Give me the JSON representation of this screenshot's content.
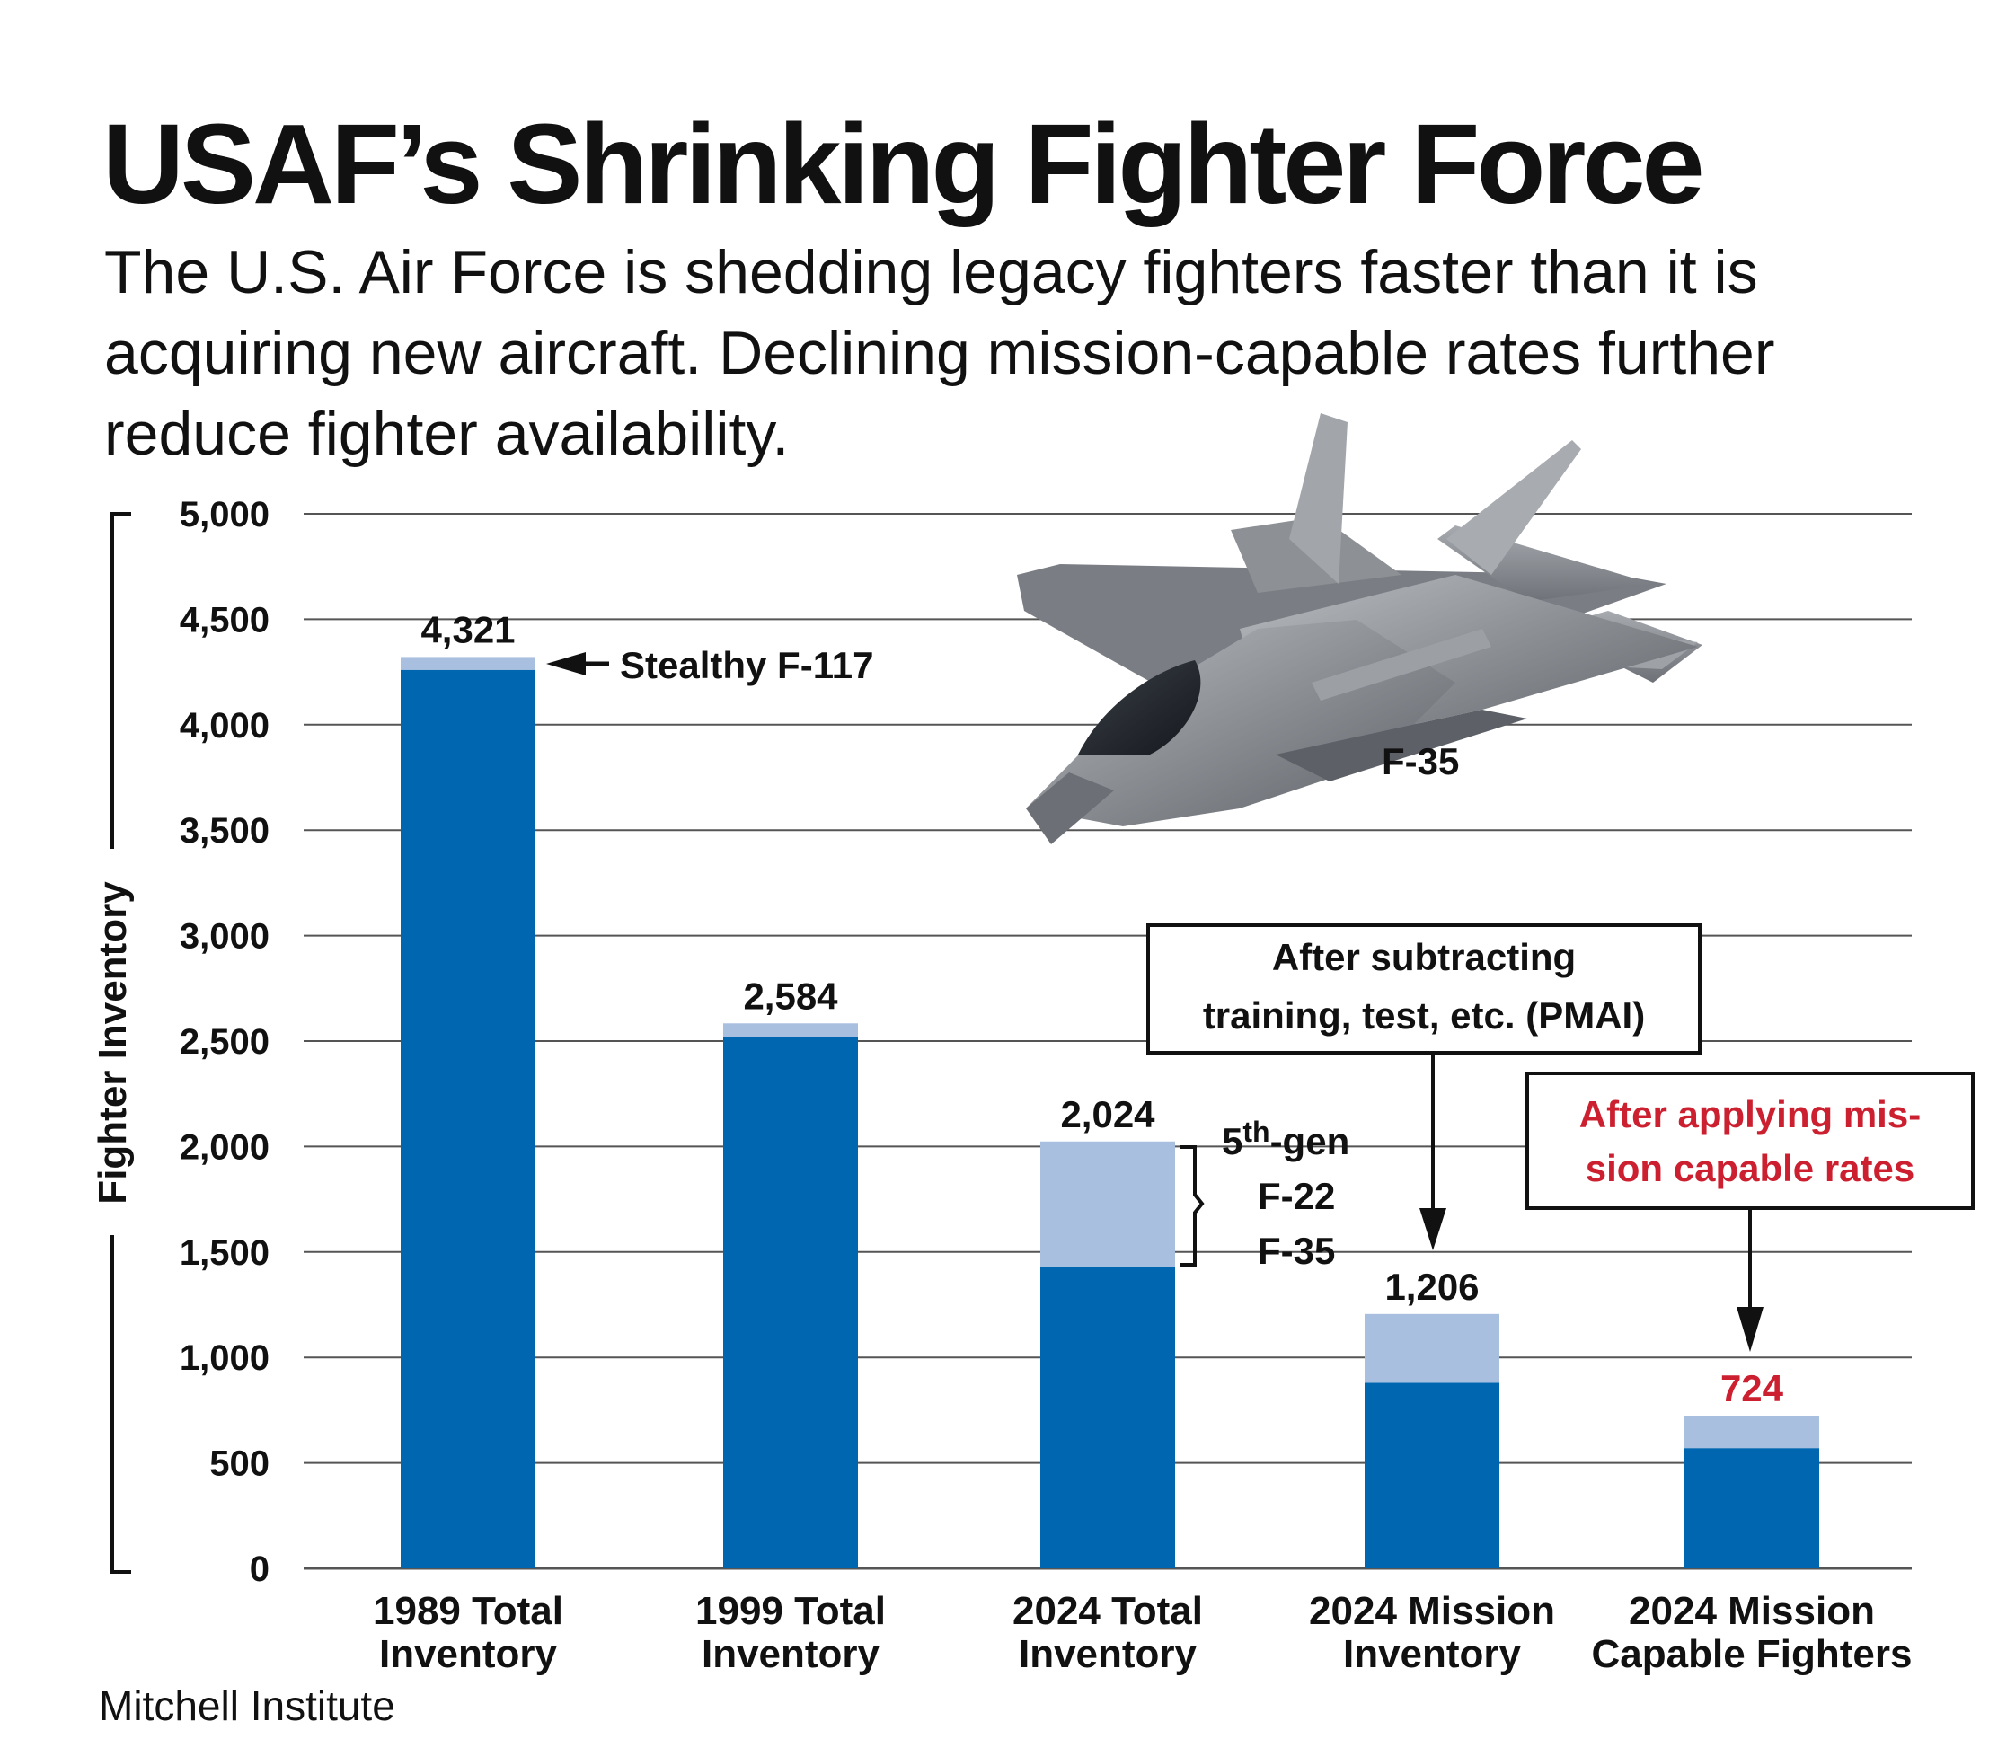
{
  "title": "USAF’s Shrinking Fighter Force",
  "subtitle": "The U.S. Air Force is shedding legacy fighters faster than it is acquiring new aircraft. Declining mission-capable rates further reduce fighter availability.",
  "source": "Mitchell Institute",
  "colors": {
    "dark_bar": "#0066b0",
    "light_bar": "#a8bfe0",
    "red_text": "#cc1f2f",
    "grid": "#555555"
  },
  "chart_data": {
    "type": "bar",
    "stacked": true,
    "ylabel": "Fighter Inventory",
    "ylim": [
      0,
      5000
    ],
    "yticks": [
      0,
      500,
      1000,
      1500,
      2000,
      2500,
      3000,
      3500,
      4000,
      4500,
      5000
    ],
    "ytick_labels": [
      "0",
      "500",
      "1,000",
      "1,500",
      "2,000",
      "2,500",
      "3,000",
      "3,500",
      "4,000",
      "4,500",
      "5,000"
    ],
    "grid": true,
    "categories": [
      [
        "1989 Total",
        "Inventory"
      ],
      [
        "1999 Total",
        "Inventory"
      ],
      [
        "2024 Total",
        "Inventory"
      ],
      [
        "2024 Mission",
        "Inventory"
      ],
      [
        "2024 Mission",
        "Capable Fighters"
      ]
    ],
    "series": [
      {
        "values": [
          4260,
          2520,
          1430,
          880,
          570
        ]
      },
      {
        "values": [
          61,
          64,
          594,
          326,
          154
        ]
      }
    ],
    "totals": [
      4321,
      2584,
      2024,
      1206,
      724
    ],
    "total_labels": [
      "4,321",
      "2,584",
      "2,024",
      "1,206",
      "724"
    ],
    "annotations": {
      "f117": "Stealthy F-117",
      "f35_photo": "F-35",
      "fifth_gen_base": "5",
      "fifth_gen_sup": "th",
      "fifth_gen_tail": "-gen",
      "f22": "F-22",
      "f35": "F-35",
      "pmai_line1": "After subtracting",
      "pmai_line2": "training, test, etc. (PMAI)",
      "mc_line1": "After applying mis-",
      "mc_line2": "sion capable rates"
    }
  },
  "image": {
    "subject": "f-35-jet"
  }
}
